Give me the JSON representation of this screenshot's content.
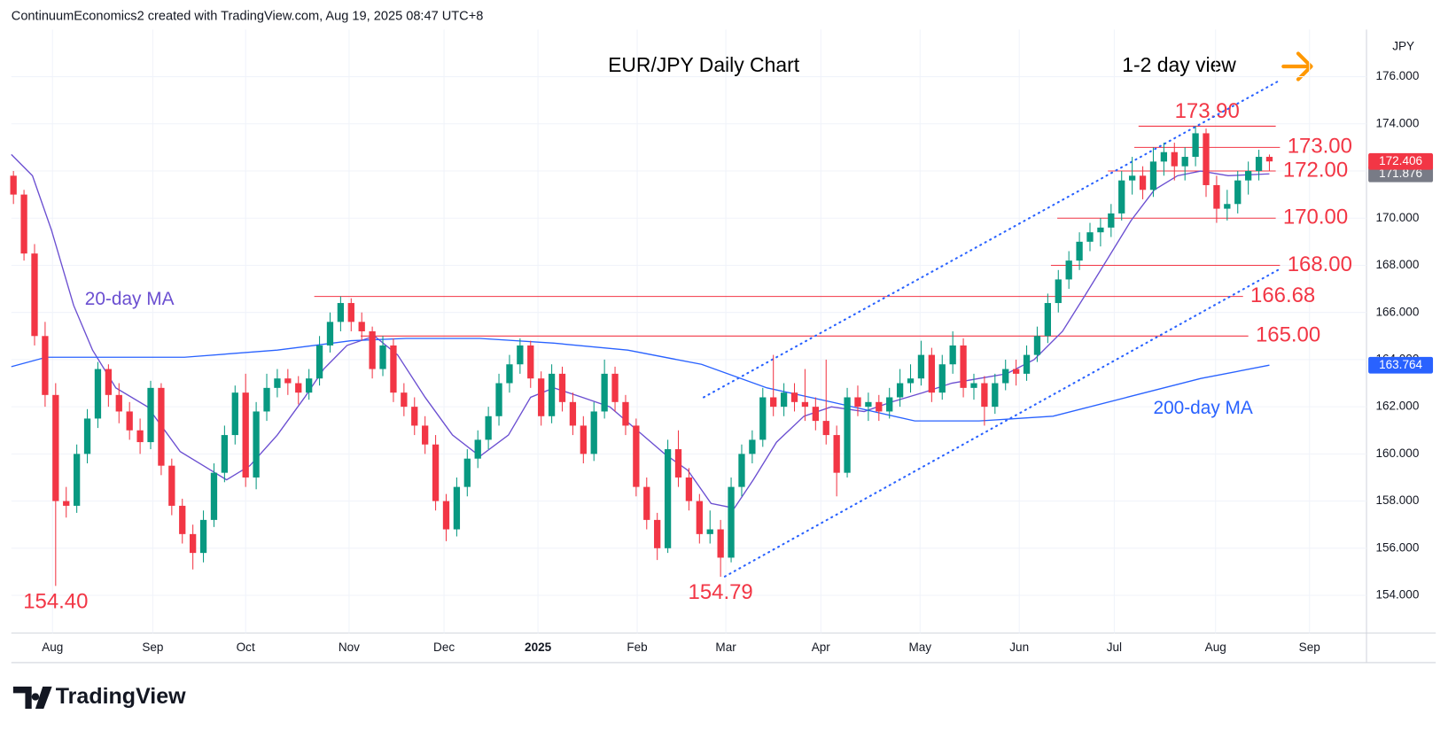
{
  "chart_data": {
    "type": "candlestick",
    "header": "ContinuumEconomics2 created with TradingView.com, Aug 19, 2025 08:47 UTC+8",
    "title": "EUR/JPY Daily Chart",
    "subtitle": "1-2 day view",
    "currency": "JPY",
    "brand": "TradingView",
    "up_color": "#089981",
    "down_color": "#f23645",
    "xlim": [
      -0.2,
      128.2
    ],
    "ylim": [
      152.4,
      178.0
    ],
    "grid": true,
    "xticks": [
      {
        "value": 3.7,
        "label": "Aug"
      },
      {
        "value": 13.2,
        "label": "Sep"
      },
      {
        "value": 22.0,
        "label": "Oct"
      },
      {
        "value": 31.8,
        "label": "Nov"
      },
      {
        "value": 40.8,
        "label": "Dec"
      },
      {
        "value": 49.7,
        "label": "2025"
      },
      {
        "value": 59.1,
        "label": "Feb"
      },
      {
        "value": 67.5,
        "label": "Mar"
      },
      {
        "value": 76.5,
        "label": "Apr"
      },
      {
        "value": 85.9,
        "label": "May"
      },
      {
        "value": 95.3,
        "label": "Jun"
      },
      {
        "value": 104.3,
        "label": "Jul"
      },
      {
        "value": 113.9,
        "label": "Aug"
      },
      {
        "value": 122.8,
        "label": "Sep"
      }
    ],
    "yticks": [
      {
        "value": 154,
        "label": "154.000"
      },
      {
        "value": 156,
        "label": "156.000"
      },
      {
        "value": 158,
        "label": "158.000"
      },
      {
        "value": 160,
        "label": "160.000"
      },
      {
        "value": 162,
        "label": "162.000"
      },
      {
        "value": 164,
        "label": "164.000"
      },
      {
        "value": 166,
        "label": "166.000"
      },
      {
        "value": 168,
        "label": "168.000"
      },
      {
        "value": 170,
        "label": "170.000"
      },
      {
        "value": 172,
        "label": "172.000"
      },
      {
        "value": 174,
        "label": "174.000"
      },
      {
        "value": 176,
        "label": "176.000"
      }
    ],
    "candles": [
      [
        171.8,
        172.0,
        170.6,
        171.0
      ],
      [
        171.0,
        171.2,
        168.2,
        168.5
      ],
      [
        168.5,
        168.9,
        164.6,
        165.0
      ],
      [
        165.0,
        165.6,
        162.0,
        162.5
      ],
      [
        162.5,
        163.0,
        154.4,
        158.0
      ],
      [
        158.0,
        158.6,
        157.3,
        157.8
      ],
      [
        157.8,
        160.4,
        157.5,
        160.0
      ],
      [
        160.0,
        161.9,
        159.6,
        161.5
      ],
      [
        161.5,
        163.9,
        161.1,
        163.6
      ],
      [
        163.6,
        163.8,
        162.0,
        162.5
      ],
      [
        162.5,
        163.0,
        161.3,
        161.8
      ],
      [
        161.8,
        162.2,
        160.6,
        161.0
      ],
      [
        161.0,
        161.5,
        160.0,
        160.5
      ],
      [
        160.5,
        163.1,
        160.2,
        162.8
      ],
      [
        162.8,
        163.0,
        159.1,
        159.5
      ],
      [
        159.5,
        159.8,
        157.4,
        157.8
      ],
      [
        157.8,
        158.1,
        156.2,
        156.6
      ],
      [
        156.6,
        157.0,
        155.1,
        155.8
      ],
      [
        155.8,
        157.6,
        155.4,
        157.2
      ],
      [
        157.2,
        159.6,
        156.9,
        159.2
      ],
      [
        159.2,
        161.2,
        158.8,
        160.8
      ],
      [
        160.8,
        162.9,
        160.4,
        162.6
      ],
      [
        162.6,
        163.4,
        158.6,
        159.0
      ],
      [
        159.0,
        162.2,
        158.5,
        161.8
      ],
      [
        161.8,
        163.4,
        161.4,
        162.8
      ],
      [
        162.8,
        163.6,
        162.4,
        163.2
      ],
      [
        163.2,
        163.6,
        162.5,
        163.0
      ],
      [
        163.0,
        163.3,
        162.1,
        162.6
      ],
      [
        162.6,
        163.6,
        162.3,
        163.2
      ],
      [
        163.2,
        165.0,
        162.9,
        164.6
      ],
      [
        164.6,
        166.0,
        164.3,
        165.6
      ],
      [
        165.6,
        166.68,
        165.2,
        166.4
      ],
      [
        166.4,
        166.6,
        165.2,
        165.6
      ],
      [
        165.6,
        166.0,
        164.8,
        165.2
      ],
      [
        165.2,
        165.4,
        163.2,
        163.6
      ],
      [
        163.6,
        165.0,
        163.3,
        164.6
      ],
      [
        164.6,
        164.9,
        162.2,
        162.6
      ],
      [
        162.6,
        163.0,
        161.6,
        162.0
      ],
      [
        162.0,
        162.4,
        160.8,
        161.2
      ],
      [
        161.2,
        161.6,
        160.0,
        160.4
      ],
      [
        160.4,
        160.8,
        157.6,
        158.0
      ],
      [
        158.0,
        158.3,
        156.3,
        156.8
      ],
      [
        156.8,
        159.0,
        156.5,
        158.6
      ],
      [
        158.6,
        160.2,
        158.2,
        159.8
      ],
      [
        159.8,
        161.0,
        159.4,
        160.6
      ],
      [
        160.6,
        162.0,
        160.2,
        161.6
      ],
      [
        161.6,
        163.4,
        161.2,
        163.0
      ],
      [
        163.0,
        164.2,
        162.6,
        163.8
      ],
      [
        163.8,
        164.9,
        163.4,
        164.6
      ],
      [
        164.6,
        164.8,
        162.8,
        163.2
      ],
      [
        163.2,
        163.5,
        161.2,
        161.6
      ],
      [
        161.6,
        163.8,
        161.3,
        163.4
      ],
      [
        163.4,
        163.7,
        161.8,
        162.2
      ],
      [
        162.2,
        162.6,
        160.8,
        161.2
      ],
      [
        161.2,
        161.6,
        159.6,
        160.0
      ],
      [
        160.0,
        162.2,
        159.7,
        161.8
      ],
      [
        161.8,
        164.0,
        161.5,
        163.4
      ],
      [
        163.4,
        163.7,
        161.8,
        162.2
      ],
      [
        162.2,
        162.5,
        160.8,
        161.2
      ],
      [
        161.2,
        161.5,
        158.2,
        158.6
      ],
      [
        158.6,
        159.0,
        156.8,
        157.2
      ],
      [
        157.2,
        157.5,
        155.5,
        156.0
      ],
      [
        156.0,
        160.6,
        155.8,
        160.2
      ],
      [
        160.2,
        161.0,
        158.6,
        159.0
      ],
      [
        159.0,
        159.4,
        157.6,
        158.0
      ],
      [
        158.0,
        158.3,
        156.2,
        156.6
      ],
      [
        156.6,
        157.6,
        156.2,
        156.8
      ],
      [
        156.8,
        157.2,
        154.79,
        155.6
      ],
      [
        155.6,
        159.0,
        155.4,
        158.6
      ],
      [
        158.6,
        160.4,
        158.2,
        160.0
      ],
      [
        160.0,
        161.0,
        159.6,
        160.6
      ],
      [
        160.6,
        162.8,
        160.3,
        162.4
      ],
      [
        162.4,
        164.2,
        161.6,
        162.0
      ],
      [
        162.0,
        163.0,
        161.6,
        162.6
      ],
      [
        162.6,
        163.0,
        161.8,
        162.2
      ],
      [
        162.2,
        163.6,
        161.4,
        162.0
      ],
      [
        162.0,
        162.4,
        161.0,
        161.4
      ],
      [
        161.4,
        164.0,
        160.4,
        160.8
      ],
      [
        160.8,
        161.2,
        158.2,
        159.2
      ],
      [
        159.2,
        162.8,
        159.0,
        162.4
      ],
      [
        162.4,
        162.9,
        161.6,
        162.0
      ],
      [
        162.0,
        162.6,
        161.4,
        162.2
      ],
      [
        162.2,
        162.5,
        161.4,
        161.8
      ],
      [
        161.8,
        162.8,
        161.5,
        162.4
      ],
      [
        162.4,
        163.6,
        162.0,
        163.0
      ],
      [
        163.0,
        163.8,
        162.6,
        163.2
      ],
      [
        163.2,
        164.8,
        162.9,
        164.2
      ],
      [
        164.2,
        164.5,
        162.2,
        162.6
      ],
      [
        162.6,
        164.2,
        162.3,
        163.8
      ],
      [
        163.8,
        165.2,
        163.4,
        164.6
      ],
      [
        164.6,
        164.9,
        162.4,
        162.8
      ],
      [
        162.8,
        163.4,
        162.3,
        163.0
      ],
      [
        163.0,
        163.3,
        161.2,
        162.0
      ],
      [
        162.0,
        163.4,
        161.7,
        163.0
      ],
      [
        163.0,
        164.0,
        162.7,
        163.6
      ],
      [
        163.6,
        164.0,
        162.9,
        163.4
      ],
      [
        163.4,
        164.6,
        163.1,
        164.2
      ],
      [
        164.2,
        165.4,
        163.9,
        165.0
      ],
      [
        165.0,
        166.8,
        164.7,
        166.4
      ],
      [
        166.4,
        167.8,
        166.0,
        167.4
      ],
      [
        167.4,
        168.6,
        167.0,
        168.2
      ],
      [
        168.2,
        169.4,
        167.8,
        169.0
      ],
      [
        169.0,
        169.8,
        168.6,
        169.4
      ],
      [
        169.4,
        170.0,
        168.8,
        169.6
      ],
      [
        169.6,
        170.6,
        169.2,
        170.2
      ],
      [
        170.2,
        172.0,
        169.9,
        171.6
      ],
      [
        171.6,
        172.6,
        171.0,
        171.8
      ],
      [
        171.8,
        172.2,
        170.8,
        171.2
      ],
      [
        171.2,
        173.0,
        170.9,
        172.4
      ],
      [
        172.4,
        173.2,
        171.8,
        172.8
      ],
      [
        172.8,
        173.2,
        171.6,
        172.2
      ],
      [
        172.2,
        173.0,
        171.6,
        172.6
      ],
      [
        172.6,
        173.9,
        172.2,
        173.6
      ],
      [
        173.6,
        173.8,
        170.9,
        171.4
      ],
      [
        171.4,
        171.8,
        169.8,
        170.4
      ],
      [
        170.4,
        171.2,
        169.9,
        170.6
      ],
      [
        170.6,
        172.0,
        170.2,
        171.6
      ],
      [
        171.6,
        172.4,
        171.0,
        172.0
      ],
      [
        172.0,
        172.9,
        171.6,
        172.6
      ],
      [
        172.6,
        172.7,
        172.0,
        172.406
      ]
    ],
    "series": [
      {
        "name": "20-day MA",
        "color": "#6b4fd1",
        "x": [
          -0.2,
          1.8,
          3.6,
          5.7,
          7.5,
          9.7,
          12.7,
          15.8,
          18,
          20.2,
          22.4,
          25,
          27.6,
          29.4,
          31.6,
          34.2,
          36.4,
          39,
          41.6,
          44.2,
          46.9,
          49,
          51.2,
          53.9,
          56.5,
          59.1,
          61.7,
          63.9,
          66.1,
          68.3,
          70.1,
          72.3,
          74.9,
          77.5,
          80.6,
          83.2,
          86.2,
          88.9,
          91.5,
          94.1,
          96.7,
          99.4,
          101.5,
          103.7,
          105.9,
          108.1,
          110.3,
          112.5,
          115.1,
          119
        ],
        "values": [
          172.7,
          171.8,
          169.5,
          166.3,
          164.4,
          162.8,
          162.0,
          160.1,
          159.5,
          158.9,
          159.5,
          160.8,
          162.4,
          163.6,
          164.6,
          165.0,
          164.2,
          162.4,
          160.8,
          159.9,
          160.8,
          162.4,
          162.8,
          162.4,
          162.0,
          161.0,
          160.0,
          159.3,
          157.9,
          157.7,
          158.9,
          160.5,
          161.6,
          162.0,
          161.8,
          162.2,
          162.6,
          163.0,
          163.2,
          163.4,
          164.0,
          165.2,
          166.7,
          168.3,
          169.9,
          171.2,
          171.8,
          172.0,
          171.8,
          171.876
        ]
      },
      {
        "name": "200-day MA",
        "color": "#2962ff",
        "x": [
          -0.2,
          3.1,
          9.2,
          16.2,
          25,
          32,
          37.2,
          44.2,
          51.2,
          58.2,
          65.2,
          71.4,
          77.5,
          85.4,
          91.5,
          98.5,
          105.5,
          112.5,
          119
        ],
        "values": [
          163.7,
          164.1,
          164.1,
          164.1,
          164.4,
          164.8,
          164.9,
          164.9,
          164.7,
          164.4,
          163.8,
          162.8,
          162.2,
          161.4,
          161.4,
          161.6,
          162.4,
          163.2,
          163.764
        ]
      }
    ],
    "levels": [
      {
        "value": 173.9,
        "label": "173.90",
        "x": [
          106.6,
          119.6
        ]
      },
      {
        "value": 173.0,
        "label": "173.00",
        "x": [
          106.2,
          120.0
        ]
      },
      {
        "value": 172.0,
        "label": "172.00",
        "x": [
          103.7,
          119.6
        ]
      },
      {
        "value": 170.0,
        "label": "170.00",
        "x": [
          98.9,
          119.6
        ]
      },
      {
        "value": 168.0,
        "label": "168.00",
        "x": [
          98.3,
          120.0
        ]
      },
      {
        "value": 166.68,
        "label": "166.68",
        "x": [
          28.5,
          116.5
        ]
      },
      {
        "value": 165.0,
        "label": "165.00",
        "x": [
          32.9,
          117.0
        ]
      }
    ],
    "annotations": [
      {
        "value": 154.4,
        "label": "154.40",
        "x": 4
      },
      {
        "value": 154.79,
        "label": "154.79",
        "x": 67
      }
    ],
    "trendlines": [
      {
        "x": [
          65.4,
          119.8
        ],
        "values": [
          162.4,
          175.8
        ]
      },
      {
        "x": [
          67.4,
          119.8
        ],
        "values": [
          154.8,
          167.8
        ]
      }
    ]
  }
}
